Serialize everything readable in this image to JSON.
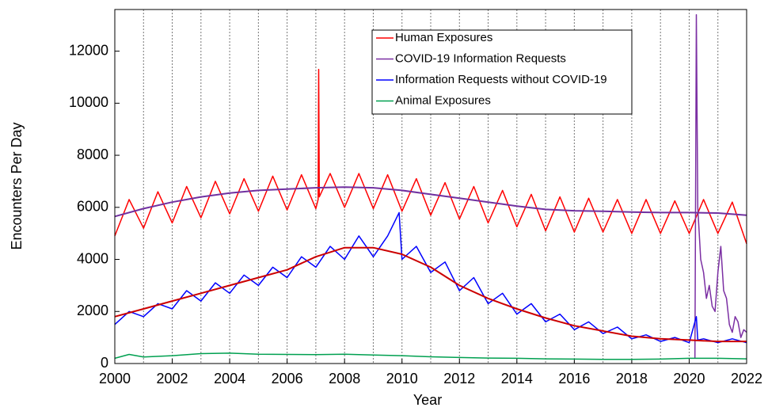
{
  "chart_data": {
    "type": "line",
    "xlabel": "Year",
    "ylabel": "Encounters Per Day",
    "xlim": [
      2000,
      2022
    ],
    "ylim": [
      0,
      13600
    ],
    "xticks": [
      2000,
      2002,
      2004,
      2006,
      2008,
      2010,
      2012,
      2014,
      2016,
      2018,
      2020,
      2022
    ],
    "yticks": [
      0,
      2000,
      4000,
      6000,
      8000,
      10000,
      12000
    ],
    "xgrid": [
      2001,
      2002,
      2003,
      2004,
      2005,
      2006,
      2007,
      2008,
      2009,
      2010,
      2011,
      2012,
      2013,
      2014,
      2015,
      2016,
      2017,
      2018,
      2019,
      2020,
      2021
    ],
    "legend": "upper right",
    "series": [
      {
        "name": "Human Exposures",
        "color": "#ff0000",
        "x": [
          2000,
          2000.5,
          2001,
          2001.5,
          2002,
          2002.5,
          2003,
          2003.5,
          2004,
          2004.5,
          2005,
          2005.5,
          2006,
          2006.5,
          2007,
          2007.08,
          2007.1,
          2007.12,
          2007.5,
          2008,
          2008.5,
          2009,
          2009.5,
          2010,
          2010.5,
          2011,
          2011.5,
          2012,
          2012.5,
          2013,
          2013.5,
          2014,
          2014.5,
          2015,
          2015.5,
          2016,
          2016.5,
          2017,
          2017.5,
          2018,
          2018.5,
          2019,
          2019.5,
          2020,
          2020.5,
          2021,
          2021.5,
          2022
        ],
        "values": [
          4900,
          6300,
          5200,
          6600,
          5400,
          6800,
          5600,
          7000,
          5750,
          7100,
          5850,
          7200,
          5900,
          7250,
          5950,
          6300,
          11300,
          6400,
          7300,
          6000,
          7300,
          5950,
          7250,
          5850,
          7100,
          5700,
          6950,
          5550,
          6800,
          5400,
          6650,
          5250,
          6500,
          5100,
          6400,
          5050,
          6350,
          5050,
          6300,
          5000,
          6300,
          5000,
          6250,
          5000,
          6300,
          5000,
          6200,
          4600
        ]
      },
      {
        "name": "COVID-19 Information Requests",
        "color": "#7b2fa3",
        "x": [
          2020.2,
          2020.25,
          2020.3,
          2020.4,
          2020.5,
          2020.6,
          2020.7,
          2020.8,
          2020.9,
          2021,
          2021.1,
          2021.2,
          2021.3,
          2021.4,
          2021.5,
          2021.6,
          2021.7,
          2021.8,
          2021.9,
          2022
        ],
        "values": [
          200,
          13400,
          6000,
          4000,
          3500,
          2500,
          3000,
          2200,
          2000,
          3500,
          4500,
          2800,
          2500,
          1500,
          1200,
          1800,
          1600,
          1000,
          1300,
          1200
        ]
      },
      {
        "name": "Information Requests without COVID-19",
        "color": "#0000ff",
        "x": [
          2000,
          2000.5,
          2001,
          2001.5,
          2002,
          2002.5,
          2003,
          2003.5,
          2004,
          2004.5,
          2005,
          2005.5,
          2006,
          2006.5,
          2007,
          2007.5,
          2008,
          2008.5,
          2009,
          2009.5,
          2009.9,
          2010,
          2010.5,
          2011,
          2011.5,
          2012,
          2012.5,
          2013,
          2013.5,
          2014,
          2014.5,
          2015,
          2015.5,
          2016,
          2016.5,
          2017,
          2017.5,
          2018,
          2018.5,
          2019,
          2019.5,
          2020,
          2020.25,
          2020.3,
          2020.5,
          2021,
          2021.5,
          2022
        ],
        "values": [
          1500,
          2000,
          1800,
          2300,
          2100,
          2800,
          2400,
          3100,
          2700,
          3400,
          3000,
          3700,
          3300,
          4100,
          3700,
          4500,
          4000,
          4900,
          4100,
          4900,
          5800,
          4000,
          4500,
          3500,
          3900,
          2800,
          3300,
          2300,
          2700,
          1900,
          2300,
          1600,
          1900,
          1300,
          1600,
          1150,
          1400,
          950,
          1100,
          850,
          1000,
          800,
          1800,
          900,
          950,
          800,
          950,
          800
        ]
      },
      {
        "name": "Animal Exposures",
        "color": "#00a050",
        "x": [
          2000,
          2000.5,
          2001,
          2002,
          2003,
          2004,
          2005,
          2006,
          2007,
          2008,
          2009,
          2010,
          2011,
          2012,
          2013,
          2014,
          2015,
          2016,
          2017,
          2018,
          2019,
          2020,
          2021,
          2022
        ],
        "values": [
          200,
          350,
          250,
          300,
          380,
          400,
          360,
          350,
          340,
          360,
          330,
          300,
          260,
          230,
          210,
          200,
          180,
          170,
          160,
          160,
          170,
          200,
          200,
          180
        ]
      },
      {
        "color": "#7030a0",
        "x": [
          2000,
          2001,
          2002,
          2003,
          2004,
          2005,
          2006,
          2007,
          2008,
          2009,
          2010,
          2011,
          2012,
          2013,
          2014,
          2015,
          2016,
          2017,
          2018,
          2019,
          2020,
          2021,
          2022
        ],
        "values": [
          5650,
          5950,
          6200,
          6400,
          6550,
          6650,
          6700,
          6750,
          6780,
          6750,
          6650,
          6500,
          6350,
          6200,
          6050,
          5920,
          5870,
          5850,
          5820,
          5800,
          5800,
          5780,
          5700
        ]
      },
      {
        "color": "#cc0000",
        "x": [
          2000,
          2001,
          2002,
          2003,
          2004,
          2005,
          2006,
          2007,
          2008,
          2009,
          2010,
          2011,
          2012,
          2013,
          2014,
          2015,
          2016,
          2017,
          2018,
          2019,
          2020,
          2021,
          2022
        ],
        "values": [
          1800,
          2100,
          2400,
          2700,
          3000,
          3300,
          3600,
          4100,
          4450,
          4450,
          4200,
          3700,
          3000,
          2500,
          2100,
          1750,
          1450,
          1250,
          1050,
          950,
          900,
          850,
          850
        ]
      }
    ]
  }
}
